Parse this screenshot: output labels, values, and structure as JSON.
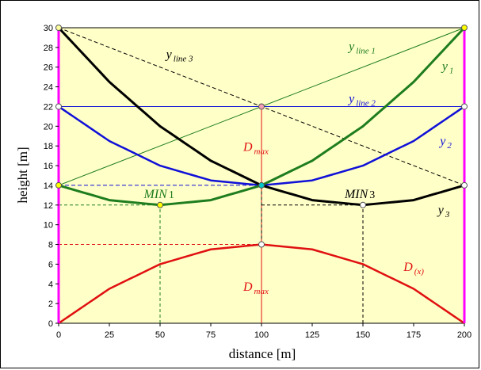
{
  "chart_data": {
    "type": "line",
    "xlabel": "distance [m]",
    "ylabel": "height [m]",
    "xlim": [
      0,
      200
    ],
    "ylim": [
      0,
      30
    ],
    "xticks": [
      "0",
      "25",
      "50",
      "75",
      "100",
      "125",
      "150",
      "175",
      "200"
    ],
    "yticks": [
      "0",
      "2",
      "4",
      "6",
      "8",
      "10",
      "12",
      "14",
      "16",
      "18",
      "20",
      "22",
      "24",
      "26",
      "28",
      "30"
    ],
    "grid": false,
    "background": "#ffffc8",
    "series": [
      {
        "name": "y1",
        "color": "#1e7d1e",
        "width": 3,
        "x": [
          0,
          25,
          50,
          75,
          100,
          125,
          150,
          175,
          200
        ],
        "y": [
          14,
          12.5,
          12,
          12.5,
          14,
          16.5,
          20,
          24.5,
          30
        ]
      },
      {
        "name": "y2",
        "color": "#1010d8",
        "width": 2.5,
        "x": [
          0,
          25,
          50,
          75,
          100,
          125,
          150,
          175,
          200
        ],
        "y": [
          22,
          18.5,
          16,
          14.5,
          14,
          14.5,
          16,
          18.5,
          22
        ]
      },
      {
        "name": "y3",
        "color": "#000000",
        "width": 3,
        "x": [
          0,
          25,
          50,
          75,
          100,
          125,
          150,
          175,
          200
        ],
        "y": [
          30,
          24.5,
          20,
          16.5,
          14,
          12.5,
          12,
          12.5,
          14
        ]
      },
      {
        "name": "D(x)",
        "color": "#e01010",
        "width": 2.5,
        "x": [
          0,
          25,
          50,
          75,
          100,
          125,
          150,
          175,
          200
        ],
        "y": [
          0,
          3.5,
          6,
          7.5,
          8,
          7.5,
          6,
          3.5,
          0
        ]
      },
      {
        "name": "yline1",
        "color": "#1e7d1e",
        "width": 1,
        "x": [
          0,
          200
        ],
        "y": [
          14,
          30
        ]
      },
      {
        "name": "yline2",
        "color": "#1010d8",
        "width": 1,
        "x": [
          0,
          200
        ],
        "y": [
          22,
          22
        ]
      },
      {
        "name": "yline3",
        "color": "#000000",
        "width": 1,
        "dash": "5,3",
        "x": [
          0,
          200
        ],
        "y": [
          30,
          14
        ]
      }
    ],
    "guide_lines": [
      {
        "color": "#1010d8",
        "dash": "5,3",
        "x": [
          0,
          100
        ],
        "y": [
          14,
          14
        ]
      },
      {
        "color": "#1e7d1e",
        "dash": "4,3",
        "x": [
          0,
          50
        ],
        "y": [
          12,
          12
        ]
      },
      {
        "color": "#1e7d1e",
        "dash": "4,3",
        "x": [
          50,
          50
        ],
        "y": [
          0,
          12
        ]
      },
      {
        "color": "#000000",
        "dash": "4,3",
        "x": [
          100,
          150
        ],
        "y": [
          12,
          12
        ]
      },
      {
        "color": "#000000",
        "dash": "4,3",
        "x": [
          150,
          150
        ],
        "y": [
          0,
          12
        ]
      },
      {
        "color": "#e01010",
        "dash": "4,3",
        "x": [
          0,
          100
        ],
        "y": [
          8,
          8
        ]
      },
      {
        "color": "#e01010",
        "dash": "",
        "x": [
          100,
          100
        ],
        "y": [
          0,
          22
        ]
      },
      {
        "color": "#000000",
        "dash": "4,3",
        "x": [
          100,
          100
        ],
        "y": [
          8,
          14
        ]
      }
    ],
    "side_bars": {
      "color": "#ff00ff",
      "x": [
        0,
        200
      ],
      "y": [
        0,
        30
      ]
    },
    "markers": [
      {
        "x": 0,
        "y": 30,
        "fill": "#ffffa0"
      },
      {
        "x": 200,
        "y": 30,
        "fill": "#ffff00"
      },
      {
        "x": 0,
        "y": 22,
        "fill": "#ffffff"
      },
      {
        "x": 200,
        "y": 22,
        "fill": "#ffffff"
      },
      {
        "x": 100,
        "y": 22,
        "fill": "#f4a0b4"
      },
      {
        "x": 0,
        "y": 14,
        "fill": "#ffff00"
      },
      {
        "x": 200,
        "y": 14,
        "fill": "#ffffff"
      },
      {
        "x": 100,
        "y": 14,
        "fill": "#00c8c8"
      },
      {
        "x": 50,
        "y": 12,
        "fill": "#ffff00"
      },
      {
        "x": 150,
        "y": 12,
        "fill": "#ffffff"
      },
      {
        "x": 100,
        "y": 8,
        "fill": "#ffffff"
      }
    ],
    "annotations": [
      {
        "name": "label-yline3",
        "main": "y",
        "sub": "line 3",
        "x": 53,
        "y": 26.9,
        "color": "#000000"
      },
      {
        "name": "label-yline1",
        "main": "y",
        "sub": "line 1",
        "x": 143,
        "y": 27.7,
        "color": "#1e7d1e"
      },
      {
        "name": "label-y1",
        "main": "y",
        "sub": "1",
        "x": 189,
        "y": 25.7,
        "color": "#1e7d1e"
      },
      {
        "name": "label-yline2",
        "main": "y",
        "sub": "line 2",
        "x": 143,
        "y": 22.4,
        "color": "#1010d8"
      },
      {
        "name": "label-y2",
        "main": "y",
        "sub": "2",
        "x": 188,
        "y": 18.1,
        "color": "#1010d8"
      },
      {
        "name": "label-dmax-upper",
        "main": "D",
        "sub": "max",
        "x": 91,
        "y": 17.5,
        "color": "#e01010"
      },
      {
        "name": "label-min1",
        "main": "MIN",
        "sub": "1",
        "x": 42,
        "y": 12.7,
        "color": "#1e7d1e"
      },
      {
        "name": "label-min3",
        "main": "MIN",
        "sub": "3",
        "x": 141,
        "y": 12.7,
        "color": "#000000"
      },
      {
        "name": "label-y3",
        "main": "y",
        "sub": "3",
        "x": 187,
        "y": 11.1,
        "color": "#000000"
      },
      {
        "name": "label-dx",
        "main": "D",
        "sub": "(x)",
        "x": 170,
        "y": 5.3,
        "color": "#e01010"
      },
      {
        "name": "label-dmax-lower",
        "main": "D",
        "sub": "max",
        "x": 91,
        "y": 3.3,
        "color": "#e01010"
      }
    ]
  }
}
